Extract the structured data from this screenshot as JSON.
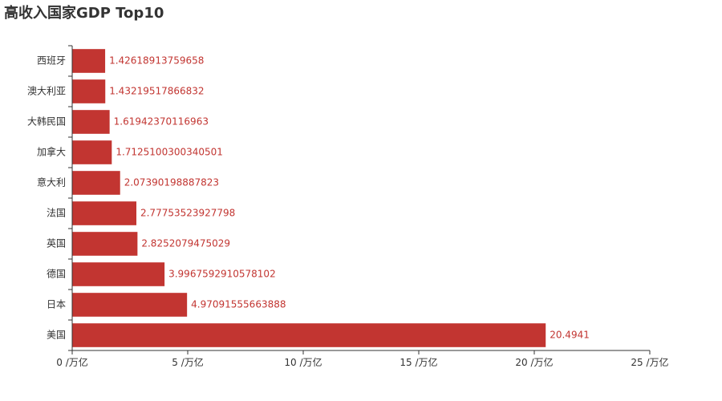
{
  "chart_data": {
    "type": "bar",
    "orientation": "horizontal",
    "title": "高收入国家GDP Top10",
    "categories": [
      "美国",
      "日本",
      "德国",
      "英国",
      "法国",
      "意大利",
      "加拿大",
      "大韩民国",
      "澳大利亚",
      "西班牙"
    ],
    "values": [
      20.4941,
      4.97091555663888,
      3.9967592910578102,
      2.8252079475029,
      2.77753523927798,
      2.07390198887823,
      1.7125100300340501,
      1.61942370116963,
      1.43219517866832,
      1.42618913759658
    ],
    "value_labels": [
      "20.4941",
      "4.97091555663888",
      "3.9967592910578102",
      "2.8252079475029",
      "2.77753523927798",
      "2.07390198887823",
      "1.7125100300340501",
      "1.61942370116963",
      "1.43219517866832",
      "1.42618913759658"
    ],
    "x_ticks": [
      0,
      5,
      10,
      15,
      20,
      25
    ],
    "x_tick_labels": [
      "0 /万亿",
      "5 /万亿",
      "10 /万亿",
      "15 /万亿",
      "20 /万亿",
      "25 /万亿"
    ],
    "xlim": [
      0,
      25
    ],
    "grid": false,
    "bar_color": "#c23531",
    "axis_color": "#333333"
  }
}
